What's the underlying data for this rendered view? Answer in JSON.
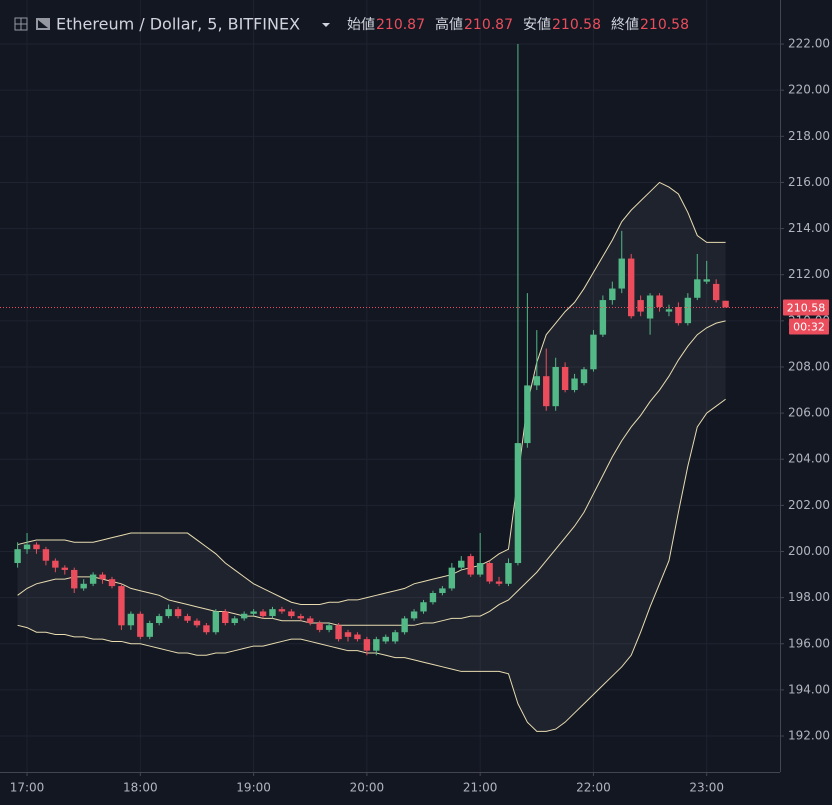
{
  "chart_data": {
    "type": "candlestick",
    "title": "Ethereum / Dollar, 5, BITFINEX",
    "ohlc_labels": [
      "始値",
      "高値",
      "安値",
      "終値"
    ],
    "x": [
      "16:55",
      "17:00",
      "17:05",
      "17:10",
      "17:15",
      "17:20",
      "17:25",
      "17:30",
      "17:35",
      "17:40",
      "17:45",
      "17:50",
      "17:55",
      "18:00",
      "18:05",
      "18:10",
      "18:15",
      "18:20",
      "18:25",
      "18:30",
      "18:35",
      "18:40",
      "18:45",
      "18:50",
      "18:55",
      "19:00",
      "19:05",
      "19:10",
      "19:15",
      "19:20",
      "19:25",
      "19:30",
      "19:35",
      "19:40",
      "19:45",
      "19:50",
      "19:55",
      "20:00",
      "20:05",
      "20:10",
      "20:15",
      "20:20",
      "20:25",
      "20:30",
      "20:35",
      "20:40",
      "20:45",
      "20:50",
      "20:55",
      "21:00",
      "21:05",
      "21:10",
      "21:15",
      "21:20",
      "21:25",
      "21:30",
      "21:35",
      "21:40",
      "21:45",
      "21:50",
      "21:55",
      "22:00",
      "22:05",
      "22:10",
      "22:15",
      "22:20",
      "22:25",
      "22:30",
      "22:35",
      "22:40",
      "22:45",
      "22:50",
      "22:55",
      "23:00",
      "23:05",
      "23:10"
    ],
    "open": [
      199.5,
      200.1,
      200.3,
      200.1,
      199.6,
      199.3,
      199.2,
      198.4,
      198.6,
      199.0,
      198.8,
      198.5,
      196.8,
      197.3,
      196.3,
      196.9,
      197.2,
      197.5,
      197.2,
      197.0,
      196.8,
      196.5,
      197.4,
      196.9,
      197.1,
      197.3,
      197.4,
      197.2,
      197.5,
      197.4,
      197.2,
      197.1,
      196.9,
      196.6,
      196.8,
      196.5,
      196.4,
      196.2,
      195.7,
      196.1,
      196.1,
      196.5,
      197.1,
      197.4,
      197.8,
      198.2,
      198.4,
      199.3,
      199.8,
      199.0,
      199.5,
      198.7,
      198.6,
      199.5,
      204.7,
      207.2,
      207.6,
      206.3,
      208.0,
      207.0,
      207.3,
      207.9,
      209.4,
      210.9,
      211.4,
      212.7,
      210.9,
      210.1,
      211.1,
      210.4,
      210.6,
      209.9,
      211.0,
      211.7,
      211.6,
      210.87
    ],
    "high": [
      200.4,
      200.8,
      200.4,
      200.2,
      199.7,
      199.4,
      199.3,
      198.8,
      199.1,
      199.1,
      198.9,
      198.6,
      197.4,
      197.4,
      197.0,
      197.3,
      197.7,
      197.6,
      197.3,
      197.1,
      196.9,
      197.5,
      197.5,
      197.2,
      197.4,
      197.5,
      197.5,
      197.6,
      197.6,
      197.5,
      197.3,
      197.2,
      197.0,
      196.9,
      196.9,
      196.6,
      196.5,
      196.3,
      196.3,
      196.4,
      196.6,
      197.2,
      197.5,
      197.9,
      198.3,
      198.5,
      199.5,
      199.8,
      199.9,
      200.8,
      199.6,
      198.9,
      199.7,
      222.0,
      211.2,
      209.6,
      208.8,
      208.4,
      208.2,
      207.7,
      208.0,
      209.6,
      211.1,
      211.7,
      213.9,
      212.9,
      211.1,
      211.2,
      211.2,
      210.7,
      210.8,
      211.2,
      212.9,
      212.6,
      211.8,
      210.87
    ],
    "low": [
      199.3,
      199.9,
      199.9,
      199.4,
      199.1,
      199.0,
      198.2,
      198.3,
      198.5,
      198.6,
      198.4,
      196.6,
      196.6,
      196.2,
      196.2,
      196.8,
      197.1,
      197.1,
      196.9,
      196.7,
      196.4,
      196.4,
      196.8,
      196.8,
      197.0,
      197.2,
      197.1,
      197.1,
      197.3,
      197.1,
      197.0,
      196.8,
      196.5,
      196.5,
      196.1,
      196.1,
      196.1,
      195.5,
      195.5,
      196.0,
      196.0,
      196.4,
      197.0,
      197.3,
      197.7,
      198.1,
      198.3,
      199.2,
      198.9,
      198.9,
      198.6,
      198.5,
      198.5,
      199.4,
      204.5,
      207.0,
      206.1,
      206.1,
      206.9,
      206.9,
      207.2,
      207.8,
      209.3,
      210.7,
      211.2,
      210.1,
      210.2,
      209.4,
      210.4,
      210.2,
      209.8,
      209.8,
      210.9,
      211.6,
      210.8,
      210.58
    ],
    "close": [
      200.1,
      200.3,
      200.1,
      199.6,
      199.3,
      199.2,
      198.4,
      198.6,
      199.0,
      198.8,
      198.5,
      196.8,
      197.3,
      196.3,
      196.9,
      197.2,
      197.5,
      197.2,
      197.0,
      196.8,
      196.5,
      197.4,
      196.9,
      197.1,
      197.3,
      197.4,
      197.2,
      197.5,
      197.4,
      197.2,
      197.1,
      196.9,
      196.6,
      196.8,
      196.2,
      196.3,
      196.2,
      195.7,
      196.2,
      196.3,
      196.5,
      197.1,
      197.4,
      197.8,
      198.2,
      198.4,
      199.3,
      199.6,
      199.0,
      199.5,
      198.7,
      198.6,
      199.5,
      204.7,
      207.2,
      207.6,
      206.3,
      208.0,
      207.0,
      207.5,
      207.9,
      209.4,
      210.9,
      211.4,
      212.7,
      210.2,
      210.4,
      211.1,
      210.6,
      210.5,
      209.9,
      211.0,
      211.8,
      211.8,
      210.9,
      210.58
    ],
    "up_color": "#53b987",
    "down_color": "#eb4d5c",
    "bands": {
      "color": "#e8dcb0",
      "upper": [
        200.3,
        200.4,
        200.5,
        200.5,
        200.5,
        200.5,
        200.4,
        200.4,
        200.4,
        200.5,
        200.6,
        200.7,
        200.8,
        200.8,
        200.8,
        200.8,
        200.8,
        200.8,
        200.8,
        200.5,
        200.2,
        199.9,
        199.5,
        199.2,
        198.9,
        198.6,
        198.4,
        198.2,
        198.0,
        197.8,
        197.7,
        197.7,
        197.7,
        197.8,
        197.8,
        197.9,
        197.9,
        198.0,
        198.1,
        198.2,
        198.3,
        198.4,
        198.6,
        198.7,
        198.8,
        198.9,
        199.0,
        199.2,
        199.3,
        199.4,
        199.6,
        199.9,
        200.1,
        203.2,
        206.4,
        208.2,
        209.4,
        209.9,
        210.4,
        210.8,
        211.4,
        212.1,
        212.8,
        213.5,
        214.3,
        214.8,
        215.2,
        215.6,
        216.0,
        215.8,
        215.5,
        214.7,
        213.7,
        213.4,
        213.4,
        213.4
      ],
      "middle": [
        198.1,
        198.4,
        198.6,
        198.7,
        198.8,
        198.8,
        198.9,
        198.9,
        198.9,
        198.8,
        198.7,
        198.6,
        198.4,
        198.3,
        198.2,
        198.1,
        197.9,
        197.8,
        197.7,
        197.6,
        197.5,
        197.4,
        197.4,
        197.3,
        197.2,
        197.2,
        197.1,
        197.1,
        197.0,
        197.0,
        197.0,
        196.9,
        196.9,
        196.9,
        196.8,
        196.8,
        196.8,
        196.8,
        196.8,
        196.8,
        196.8,
        196.8,
        196.8,
        196.9,
        196.9,
        197.0,
        197.1,
        197.1,
        197.2,
        197.2,
        197.4,
        197.7,
        197.9,
        198.3,
        198.7,
        199.1,
        199.6,
        200.1,
        200.6,
        201.1,
        201.7,
        202.5,
        203.3,
        204.1,
        204.8,
        205.4,
        205.9,
        206.5,
        207.0,
        207.6,
        208.3,
        208.9,
        209.4,
        209.7,
        209.9,
        210.0
      ],
      "lower": [
        196.8,
        196.7,
        196.5,
        196.5,
        196.4,
        196.4,
        196.3,
        196.3,
        196.2,
        196.2,
        196.1,
        196.1,
        196.0,
        196.0,
        195.9,
        195.8,
        195.7,
        195.6,
        195.6,
        195.5,
        195.5,
        195.6,
        195.6,
        195.7,
        195.8,
        195.9,
        195.9,
        196.0,
        196.1,
        196.2,
        196.2,
        196.1,
        196.0,
        195.9,
        195.8,
        195.7,
        195.7,
        195.6,
        195.6,
        195.5,
        195.4,
        195.4,
        195.3,
        195.2,
        195.1,
        195.0,
        194.9,
        194.8,
        194.8,
        194.8,
        194.8,
        194.8,
        194.7,
        193.4,
        192.6,
        192.2,
        192.2,
        192.3,
        192.6,
        193.0,
        193.4,
        193.8,
        194.2,
        194.6,
        195.0,
        195.5,
        196.5,
        197.6,
        198.6,
        199.6,
        201.7,
        203.7,
        205.4,
        206.0,
        206.3,
        206.6
      ]
    },
    "ylim": [
      190.44,
      223.91
    ],
    "yticks": [
      {
        "value": 192,
        "label": "192.00"
      },
      {
        "value": 194,
        "label": "194.00"
      },
      {
        "value": 196,
        "label": "196.00"
      },
      {
        "value": 198,
        "label": "198.00"
      },
      {
        "value": 200,
        "label": "200.00"
      },
      {
        "value": 202,
        "label": "202.00"
      },
      {
        "value": 204,
        "label": "204.00"
      },
      {
        "value": 206,
        "label": "206.00"
      },
      {
        "value": 208,
        "label": "208.00"
      },
      {
        "value": 210,
        "label": "210.00"
      },
      {
        "value": 212,
        "label": "212.00"
      },
      {
        "value": 214,
        "label": "214.00"
      },
      {
        "value": 216,
        "label": "216.00"
      },
      {
        "value": 218,
        "label": "218.00"
      },
      {
        "value": 220,
        "label": "220.00"
      },
      {
        "value": 222,
        "label": "222.00"
      }
    ],
    "xticks": [
      "17:00",
      "18:00",
      "19:00",
      "20:00",
      "21:00",
      "22:00",
      "23:00"
    ],
    "grid": true,
    "countdown": "00:32"
  }
}
